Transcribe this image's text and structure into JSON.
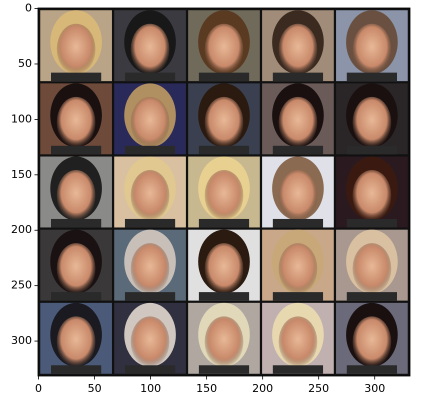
{
  "chart_data": {
    "type": "image",
    "xlim": [
      -0.5,
      331.5
    ],
    "xticks": [
      0,
      50,
      100,
      150,
      200,
      250,
      300
    ],
    "ylim": [
      331.5,
      -0.5
    ],
    "yticks": [
      0,
      50,
      100,
      150,
      200,
      250,
      300
    ]
  }
}
